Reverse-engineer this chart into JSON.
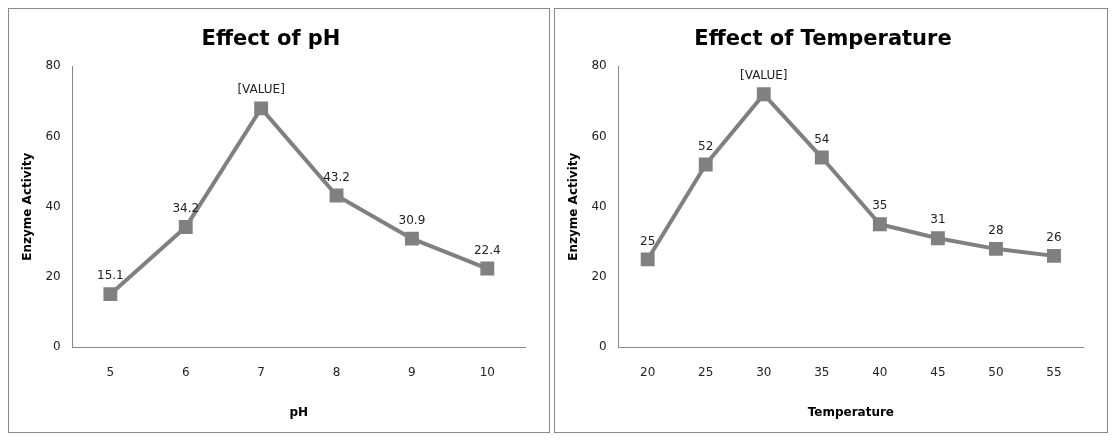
{
  "chart_data": [
    {
      "type": "line",
      "title": "Effect of pH",
      "xlabel": "pH",
      "ylabel": "Enzyme Activity",
      "categories": [
        "5",
        "6",
        "7",
        "8",
        "9",
        "10"
      ],
      "series": [
        {
          "color": "#808080",
          "values": [
            15.1,
            34.2,
            68,
            43.2,
            30.9,
            22.4
          ],
          "value_labels": [
            "15.1",
            "34.2",
            "[VALUE]",
            "43.2",
            "30.9",
            "22.4"
          ]
        }
      ],
      "ylim": [
        0,
        80
      ],
      "yticks": [
        0,
        20,
        40,
        60,
        80
      ],
      "grid": false,
      "legend": false,
      "marker": "square",
      "line_style": "solid"
    },
    {
      "type": "line",
      "title": "Effect of Temperature",
      "xlabel": "Temperature",
      "ylabel": "Enzyme Activity",
      "categories": [
        "20",
        "25",
        "30",
        "35",
        "40",
        "45",
        "50",
        "55"
      ],
      "series": [
        {
          "color": "#808080",
          "values": [
            25,
            52,
            72,
            54,
            35,
            31,
            28,
            26
          ],
          "value_labels": [
            "25",
            "52",
            "[VALUE]",
            "54",
            "35",
            "31",
            "28",
            "26"
          ]
        }
      ],
      "ylim": [
        0,
        80
      ],
      "yticks": [
        0,
        20,
        40,
        60,
        80
      ],
      "grid": false,
      "legend": false,
      "marker": "square",
      "line_style": "solid"
    }
  ]
}
